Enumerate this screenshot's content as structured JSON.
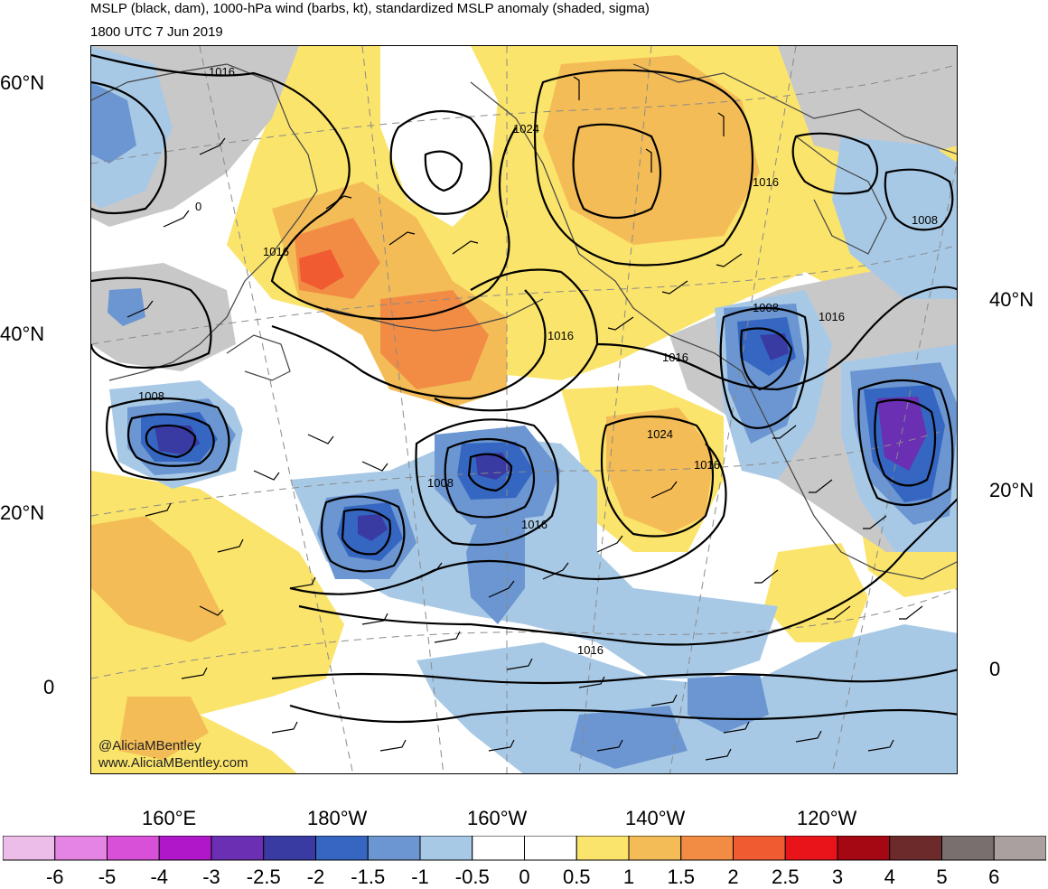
{
  "title": {
    "line1": "MSLP (black, dam), 1000-hPa wind (barbs, kt), standardized MSLP anomaly (shaded, sigma)",
    "line2": "1800 UTC 7 Jun 2019"
  },
  "credit": {
    "handle": "@AliciaMBentley",
    "url": "www.AliciaMBentley.com"
  },
  "axes": {
    "left_lat": [
      "60°N",
      "40°N",
      "20°N",
      "0"
    ],
    "right_lat": [
      "40°N",
      "20°N",
      "0"
    ],
    "bottom_lon": [
      "160°E",
      "180°W",
      "160°W",
      "140°W",
      "120°W"
    ]
  },
  "contour_labels": [
    "1016",
    "1024",
    "1016",
    "0",
    "1016",
    "1008",
    "1016",
    "1008",
    "1016",
    "1016",
    "1008",
    "1024",
    "1016",
    "1008",
    "1016",
    "1016"
  ],
  "colorbar": {
    "labels": [
      "-6",
      "-5",
      "-4",
      "-3",
      "-2.5",
      "-2",
      "-1.5",
      "-1",
      "-0.5",
      "0",
      "0.5",
      "1",
      "1.5",
      "2",
      "2.5",
      "3",
      "4",
      "5",
      "6"
    ],
    "colors": [
      "#ecbde8",
      "#e585e3",
      "#d84fd8",
      "#b017c9",
      "#6a2fb3",
      "#3a3aa3",
      "#3566c1",
      "#6b96d1",
      "#a8c9e6",
      "#ffffff",
      "#ffffff",
      "#fbe46b",
      "#f4bc57",
      "#f28c45",
      "#f15b32",
      "#e8141a",
      "#a50812",
      "#6c2a2a",
      "#7a6f6f",
      "#aba0a0"
    ]
  },
  "colors": {
    "gray_high": "#c8c8c8",
    "light_blue": "#a8c9e6",
    "mid_blue": "#6b96d1",
    "blue": "#3566c1",
    "dark_blue": "#3a3aa3",
    "purple": "#6a2fb3",
    "yellow": "#fbe46b",
    "orange_light": "#f4bc57",
    "orange": "#f28c45",
    "red_orange": "#f15b32"
  }
}
